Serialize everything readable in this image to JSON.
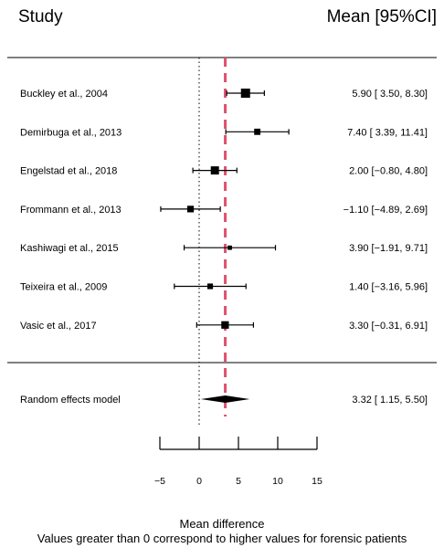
{
  "chart_data": {
    "type": "forest",
    "header_left": "Study",
    "header_right": "Mean [95%CI]",
    "studies": [
      {
        "label": "Buckley et al., 2004",
        "mean": 5.9,
        "lower": 3.5,
        "upper": 8.3,
        "ci_text": "5.90 [ 3.50,  8.30]",
        "weight": 1.0
      },
      {
        "label": "Demirbuga et al., 2013",
        "mean": 7.4,
        "lower": 3.39,
        "upper": 11.41,
        "ci_text": "7.40 [ 3.39, 11.41]",
        "weight": 0.55
      },
      {
        "label": "Engelstad et al., 2018",
        "mean": 2.0,
        "lower": -0.8,
        "upper": 4.8,
        "ci_text": "2.00 [−0.80,  4.80]",
        "weight": 0.85
      },
      {
        "label": "Frommann et al., 2013",
        "mean": -1.1,
        "lower": -4.89,
        "upper": 2.69,
        "ci_text": "−1.10 [−4.89,  2.69]",
        "weight": 0.6
      },
      {
        "label": "Kashiwagi et al., 2015",
        "mean": 3.9,
        "lower": -1.91,
        "upper": 9.71,
        "ci_text": "3.90 [−1.91,  9.71]",
        "weight": 0.25
      },
      {
        "label": "Teixeira et al., 2009",
        "mean": 1.4,
        "lower": -3.16,
        "upper": 5.96,
        "ci_text": "1.40 [−3.16,  5.96]",
        "weight": 0.45
      },
      {
        "label": "Vasic et al., 2017",
        "mean": 3.3,
        "lower": -0.31,
        "upper": 6.91,
        "ci_text": "3.30 [−0.31,  6.91]",
        "weight": 0.75
      }
    ],
    "summary": {
      "label": "Random effects model",
      "mean": 3.32,
      "lower": 1.15,
      "upper": 5.5,
      "ci_text": "3.32 [ 1.15,  5.50]"
    },
    "reference_line": 0,
    "summary_line": 3.32,
    "xticks": [
      -5,
      0,
      5,
      10,
      15
    ],
    "xtick_labels": [
      "−5",
      "0",
      "5",
      "10",
      "15"
    ],
    "xlim": [
      -5,
      15
    ],
    "xlabel": "Mean difference",
    "caption": "Values greater than 0 correspond to higher values for forensic patients",
    "colors": {
      "summary_line": "#e0506e",
      "marks": "#000000"
    }
  }
}
